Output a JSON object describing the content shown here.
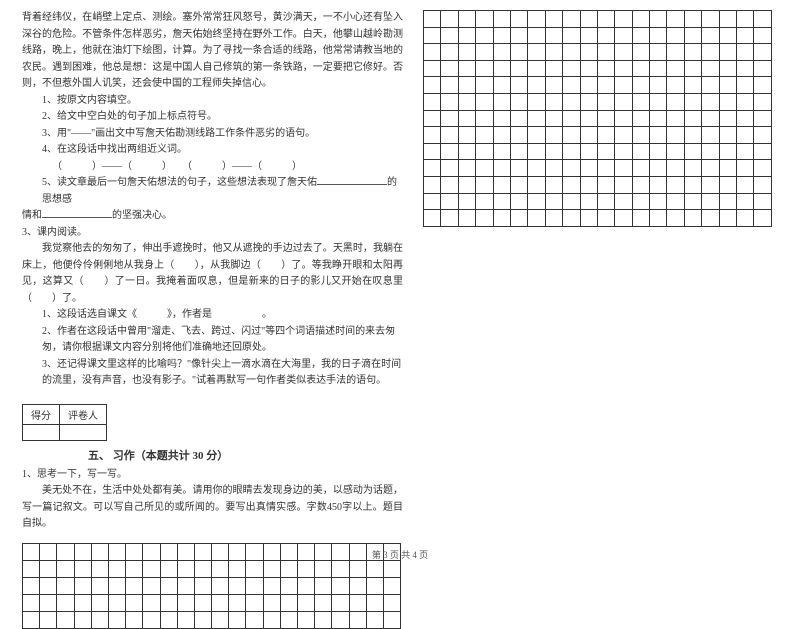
{
  "leftColumn": {
    "passage": "背着经纬仪，在峭壁上定点、测绘。塞外常常狂风怒号，黄沙满天，一不小心还有坠入深谷的危险。不管条件怎样恶劣，詹天佑始终坚持在野外工作。白天，他攀山越岭勘测线路，晚上，他就在油灯下绘图，计算。为了寻找一条合适的线路，他常常请教当地的农民。遇到困难，他总是想：这是中国人自己修筑的第一条铁路，一定要把它修好。否则，不但惹外国人讥笑，还会使中国的工程师失掉信心。",
    "q1": "1、按原文内容填空。",
    "q2": "2、给文中空白处的句子加上标点符号。",
    "q3": "3、用\"——\"画出文中写詹天佑勘测线路工作条件恶劣的语句。",
    "q4": "4、在这段话中找出两组近义词。",
    "q4blank": "（　　　）——（　　　）　　（　　　）——（　　　）",
    "q5a": "5、读文章最后一句詹天佑想法的句子，这些想法表现了詹天佑",
    "q5b": "的思想感",
    "q5c": "情和",
    "q5d": "的坚强决心。",
    "sec3": "3、课内阅读。",
    "p2": "　　我觉察他去的匆匆了，伸出手遮挽时，他又从遮挽的手边过去了。天黑时，我躺在床上，他便伶伶俐俐地从我身上（　　），从我脚边（　　）了。等我睁开眼和太阳再见，这算又（　　）了一日。我掩着面叹息，但是新来的日子的影儿又开始在叹息里（　　）了。",
    "p2q1": "1、这段话选自课文《　　　》，作者是　　　　　。",
    "p2q2": "2、作者在这段话中曾用\"溜走、飞去、跨过、闪过\"等四个词语描述时间的来去匆匆，请你根据课文内容分别将他们准确地还回原处。",
    "p2q3": "3、还记得课文里这样的比喻吗？\"像针尖上一滴水滴在大海里，我的日子滴在时间的流里，没有声音，也没有影子。\"试着再默写一句作者类似表达手法的语句。",
    "scoreLabels": [
      "得分",
      "评卷人"
    ],
    "sectionTitle": "五、 习作（本题共计 30 分）",
    "essay1": "1、思考一下，写一写。",
    "essay2": "　　美无处不在，生活中处处都有美。请用你的眼睛去发现身边的美，以感动为话题，写一篇记叙文。可以写自己所见的或所闻的。要写出真情实感。字数450字以上。题目自拟。"
  },
  "gridTop": {
    "rows": 13,
    "cols": 20
  },
  "gridBottom": {
    "rows": 5,
    "cols": 22
  },
  "footer": "第 3 页  共 4 页",
  "style": {
    "cellBorder": "#333333",
    "textColor": "#333333",
    "fontSize": 10
  }
}
